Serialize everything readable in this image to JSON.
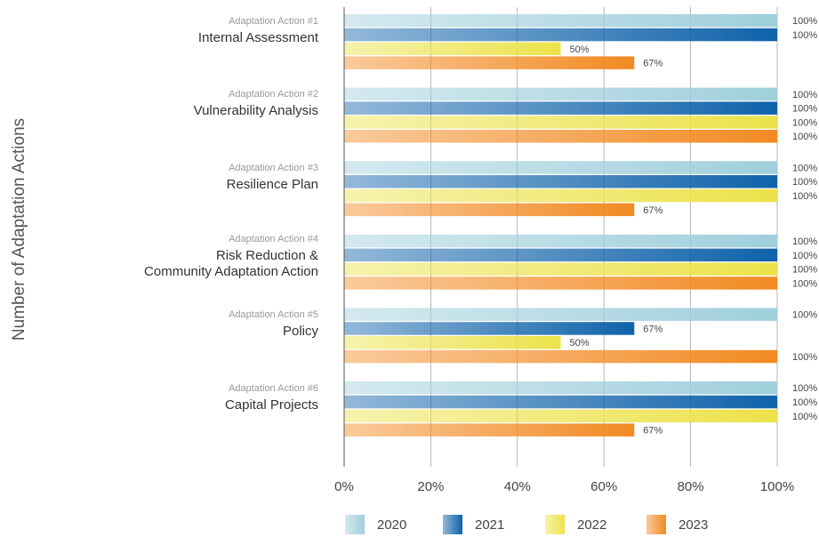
{
  "chart_data": {
    "type": "bar",
    "orientation": "horizontal",
    "y_axis_label": "Number of Adaptation Actions",
    "category_captions": [
      "Adaptation Action #1",
      "Adaptation Action #2",
      "Adaptation Action #3",
      "Adaptation Action #4",
      "Adaptation Action #5",
      "Adaptation Action #6"
    ],
    "categories": [
      "Internal Assessment",
      "Vulnerability Analysis",
      "Resilience Plan",
      "Risk Reduction &\nCommunity Adaptation Action",
      "Policy",
      "Capital Projects"
    ],
    "series": [
      {
        "name": "2020",
        "color": "#9fcfdc",
        "values": [
          100,
          100,
          100,
          100,
          100,
          100
        ],
        "value_labels": [
          "100%",
          "100%",
          "100%",
          "100%",
          "100%",
          "100%"
        ]
      },
      {
        "name": "2021",
        "color": "#0f62aa",
        "values": [
          100,
          100,
          100,
          100,
          67,
          100
        ],
        "value_labels": [
          "100%",
          "100%",
          "100%",
          "100%",
          "67%",
          "100%"
        ]
      },
      {
        "name": "2022",
        "color": "#ece24a",
        "values": [
          50,
          100,
          100,
          100,
          50,
          100
        ],
        "value_labels": [
          "50%",
          "100%",
          "100%",
          "100%",
          "50%",
          "100%"
        ]
      },
      {
        "name": "2023",
        "color": "#f28a22",
        "values": [
          67,
          100,
          67,
          100,
          100,
          67
        ],
        "value_labels": [
          "67%",
          "100%",
          "67%",
          "100%",
          "100%",
          "67%"
        ]
      }
    ],
    "xlim": [
      0,
      100
    ],
    "xticks": [
      {
        "value": 0,
        "label": "0%"
      },
      {
        "value": 20,
        "label": "20%"
      },
      {
        "value": 40,
        "label": "40%"
      },
      {
        "value": 60,
        "label": "60%"
      },
      {
        "value": 80,
        "label": "80%"
      },
      {
        "value": 100,
        "label": "100%"
      }
    ],
    "grid": true,
    "legend": "bottom"
  }
}
